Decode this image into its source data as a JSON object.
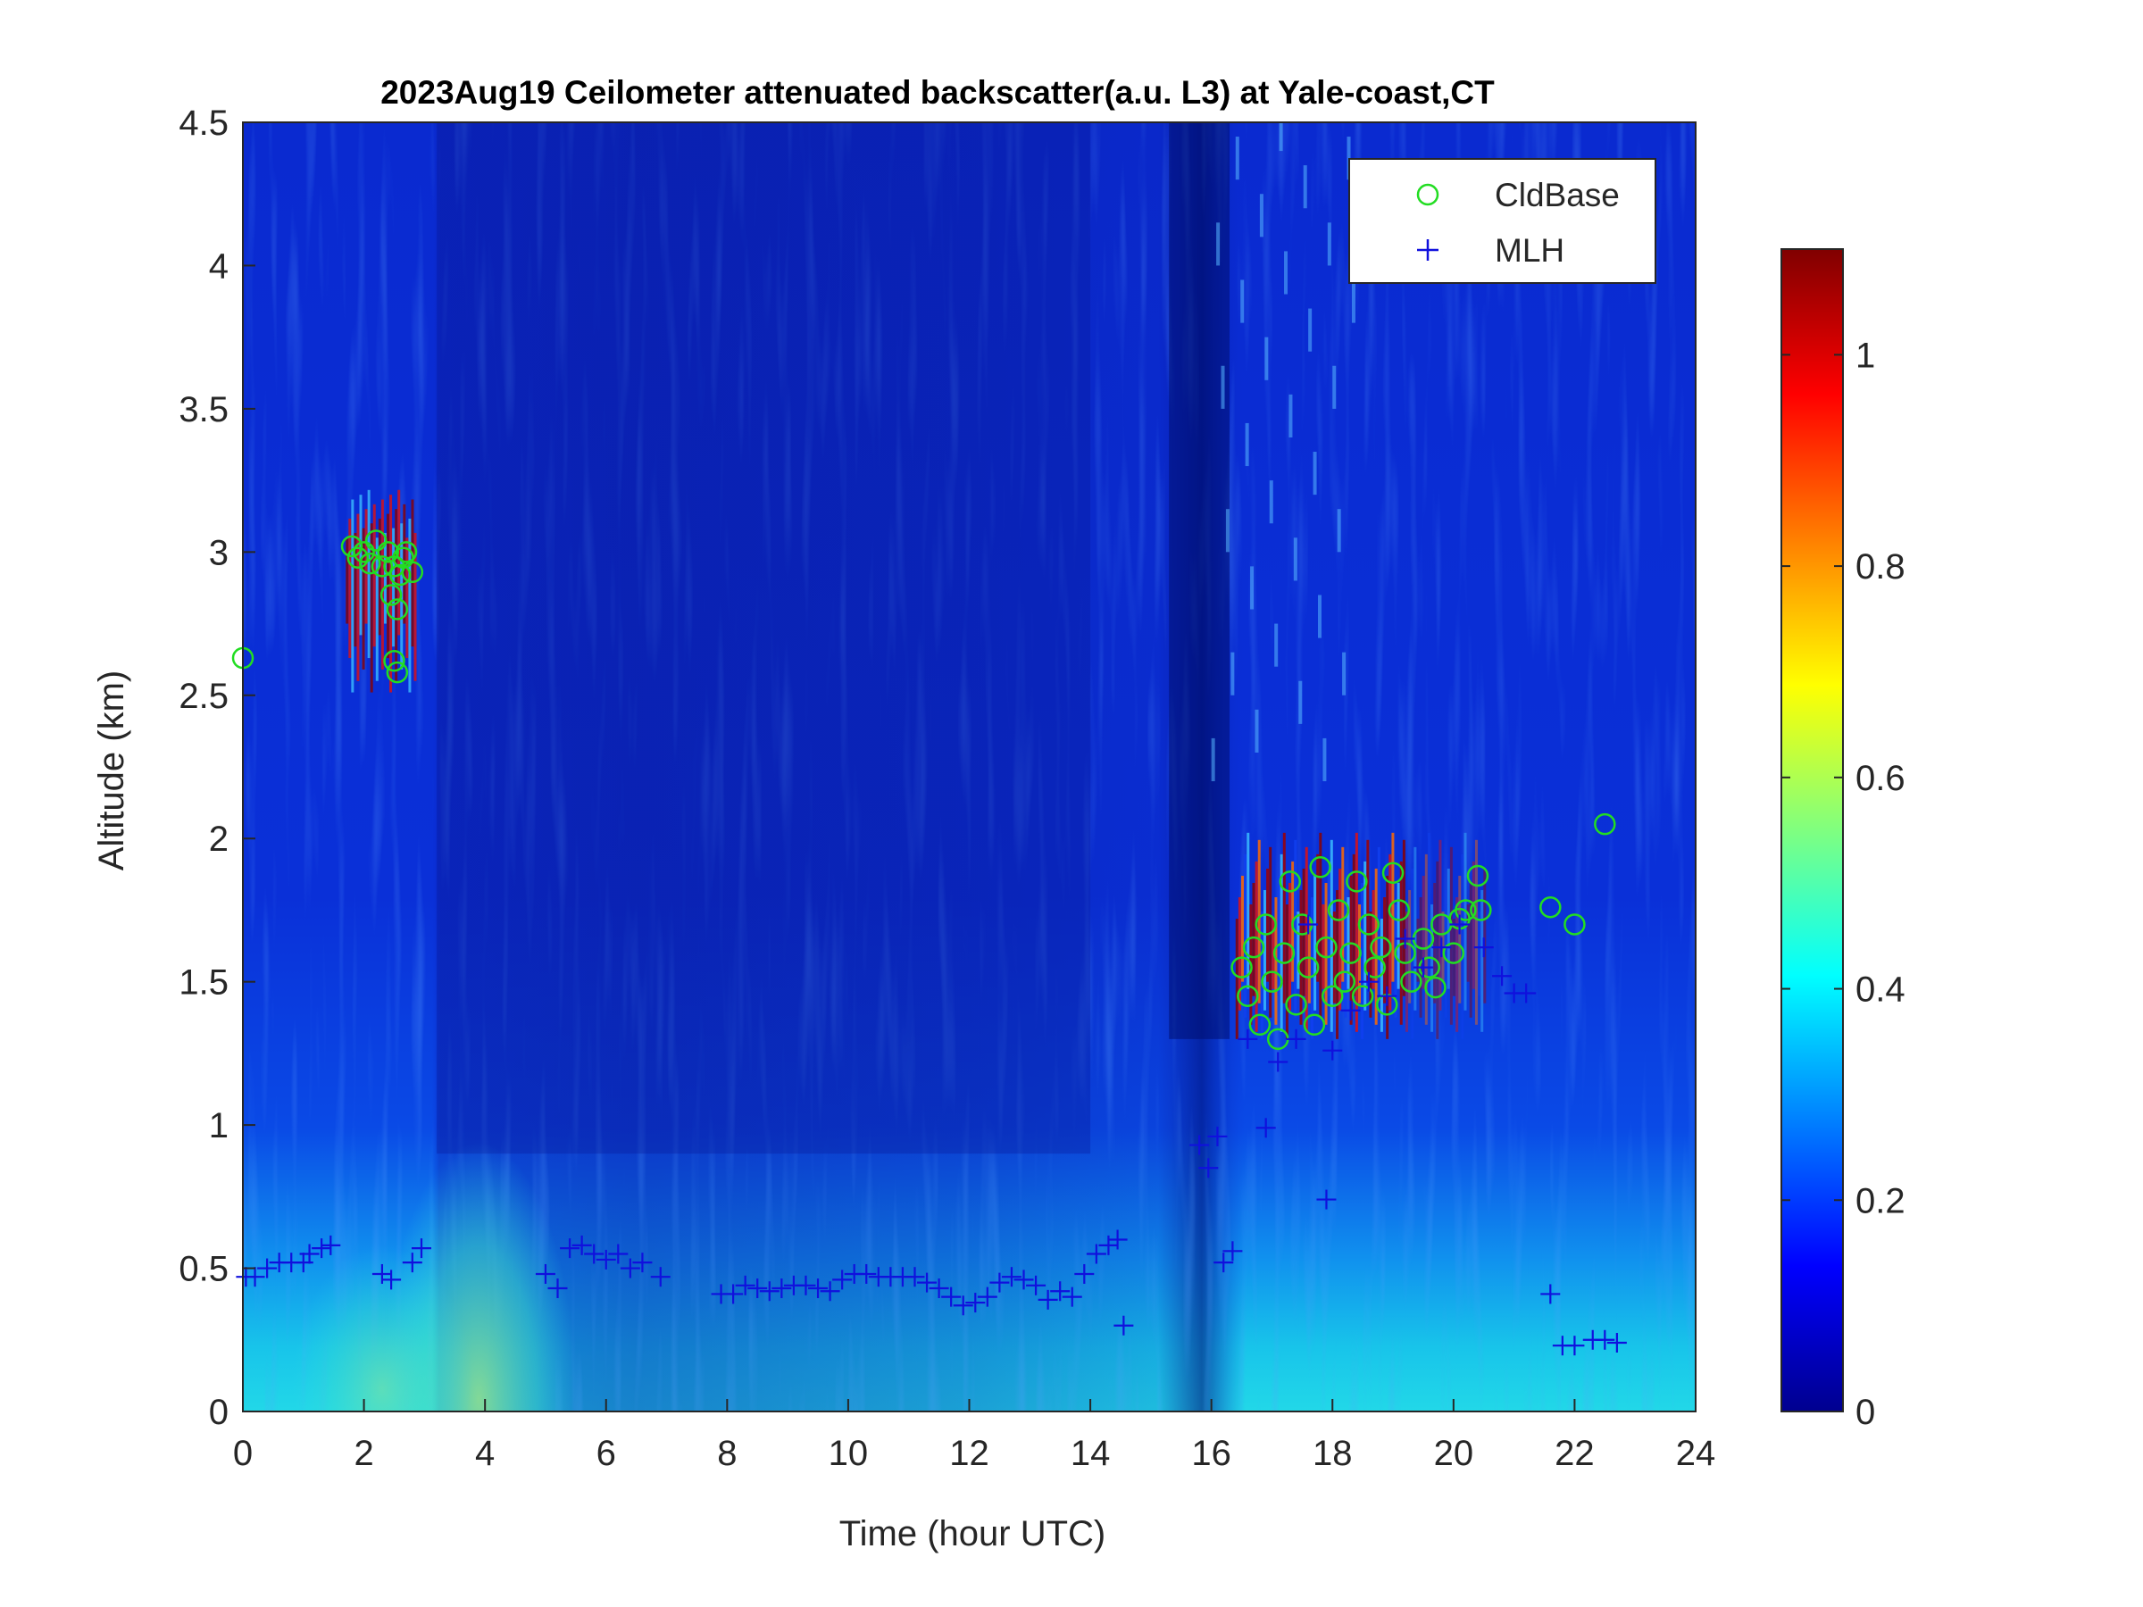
{
  "chart_data": {
    "type": "heatmap",
    "title": "2023Aug19 Ceilometer attenuated backscatter(a.u. L3) at Yale-coast,CT",
    "xlabel": "Time (hour UTC)",
    "ylabel": "Altitude (km)",
    "xlim": [
      0,
      24
    ],
    "ylim": [
      0,
      4.5
    ],
    "xticks": [
      "0",
      "2",
      "4",
      "6",
      "8",
      "10",
      "12",
      "14",
      "16",
      "18",
      "20",
      "22",
      "24"
    ],
    "yticks": [
      "0",
      "0.5",
      "1",
      "1.5",
      "2",
      "2.5",
      "3",
      "3.5",
      "4",
      "4.5"
    ],
    "colorbar": {
      "range": [
        0,
        1.1
      ],
      "ticks": [
        "0",
        "0.2",
        "0.4",
        "0.6",
        "0.8",
        "1"
      ],
      "colormap": "jet"
    },
    "legend": {
      "position": "top-right",
      "entries": [
        {
          "label": "CldBase",
          "marker": "circle",
          "color": "#22dd22"
        },
        {
          "label": "MLH",
          "marker": "plus",
          "color": "#1010dd"
        }
      ]
    },
    "series": [
      {
        "name": "CldBase",
        "marker": "circle",
        "color": "#22dd22",
        "points": [
          [
            0.0,
            2.63
          ],
          [
            1.8,
            3.02
          ],
          [
            1.9,
            2.98
          ],
          [
            2.0,
            3.0
          ],
          [
            2.1,
            2.96
          ],
          [
            2.2,
            3.04
          ],
          [
            2.3,
            2.95
          ],
          [
            2.4,
            3.0
          ],
          [
            2.45,
            2.85
          ],
          [
            2.5,
            2.95
          ],
          [
            2.55,
            2.8
          ],
          [
            2.6,
            2.92
          ],
          [
            2.65,
            2.98
          ],
          [
            2.7,
            3.0
          ],
          [
            2.8,
            2.93
          ],
          [
            2.5,
            2.62
          ],
          [
            2.55,
            2.58
          ],
          [
            16.5,
            1.55
          ],
          [
            16.6,
            1.45
          ],
          [
            16.7,
            1.62
          ],
          [
            16.8,
            1.35
          ],
          [
            16.9,
            1.7
          ],
          [
            17.0,
            1.5
          ],
          [
            17.1,
            1.3
          ],
          [
            17.2,
            1.6
          ],
          [
            17.3,
            1.85
          ],
          [
            17.4,
            1.42
          ],
          [
            17.5,
            1.7
          ],
          [
            17.6,
            1.55
          ],
          [
            17.7,
            1.35
          ],
          [
            17.8,
            1.9
          ],
          [
            17.9,
            1.62
          ],
          [
            18.0,
            1.45
          ],
          [
            18.1,
            1.75
          ],
          [
            18.2,
            1.5
          ],
          [
            18.3,
            1.6
          ],
          [
            18.4,
            1.85
          ],
          [
            18.5,
            1.45
          ],
          [
            18.6,
            1.7
          ],
          [
            18.7,
            1.55
          ],
          [
            18.8,
            1.62
          ],
          [
            18.9,
            1.42
          ],
          [
            19.0,
            1.88
          ],
          [
            19.1,
            1.75
          ],
          [
            19.2,
            1.6
          ],
          [
            19.3,
            1.5
          ],
          [
            19.5,
            1.65
          ],
          [
            19.6,
            1.55
          ],
          [
            19.7,
            1.48
          ],
          [
            19.8,
            1.7
          ],
          [
            20.0,
            1.6
          ],
          [
            20.1,
            1.72
          ],
          [
            20.2,
            1.75
          ],
          [
            20.4,
            1.87
          ],
          [
            20.45,
            1.75
          ],
          [
            21.6,
            1.76
          ],
          [
            22.0,
            1.7
          ],
          [
            22.5,
            2.05
          ]
        ]
      },
      {
        "name": "MLH",
        "marker": "plus",
        "color": "#1010dd",
        "points": [
          [
            0.05,
            0.47
          ],
          [
            0.2,
            0.47
          ],
          [
            0.4,
            0.5
          ],
          [
            0.6,
            0.52
          ],
          [
            0.8,
            0.52
          ],
          [
            1.0,
            0.52
          ],
          [
            1.1,
            0.55
          ],
          [
            1.3,
            0.57
          ],
          [
            1.45,
            0.58
          ],
          [
            2.3,
            0.48
          ],
          [
            2.45,
            0.46
          ],
          [
            2.8,
            0.52
          ],
          [
            2.95,
            0.57
          ],
          [
            5.0,
            0.48
          ],
          [
            5.2,
            0.43
          ],
          [
            5.4,
            0.57
          ],
          [
            5.6,
            0.58
          ],
          [
            5.8,
            0.55
          ],
          [
            6.0,
            0.53
          ],
          [
            6.2,
            0.55
          ],
          [
            6.4,
            0.5
          ],
          [
            6.6,
            0.52
          ],
          [
            6.9,
            0.47
          ],
          [
            7.9,
            0.41
          ],
          [
            8.1,
            0.41
          ],
          [
            8.3,
            0.44
          ],
          [
            8.5,
            0.43
          ],
          [
            8.7,
            0.42
          ],
          [
            8.9,
            0.43
          ],
          [
            9.1,
            0.44
          ],
          [
            9.3,
            0.44
          ],
          [
            9.5,
            0.43
          ],
          [
            9.7,
            0.42
          ],
          [
            9.9,
            0.46
          ],
          [
            10.1,
            0.48
          ],
          [
            10.3,
            0.48
          ],
          [
            10.5,
            0.47
          ],
          [
            10.7,
            0.47
          ],
          [
            10.9,
            0.47
          ],
          [
            11.1,
            0.47
          ],
          [
            11.3,
            0.45
          ],
          [
            11.5,
            0.43
          ],
          [
            11.7,
            0.4
          ],
          [
            11.9,
            0.37
          ],
          [
            12.1,
            0.38
          ],
          [
            12.3,
            0.4
          ],
          [
            12.5,
            0.45
          ],
          [
            12.7,
            0.47
          ],
          [
            12.9,
            0.46
          ],
          [
            13.1,
            0.44
          ],
          [
            13.3,
            0.39
          ],
          [
            13.5,
            0.42
          ],
          [
            13.7,
            0.4
          ],
          [
            13.9,
            0.48
          ],
          [
            14.1,
            0.55
          ],
          [
            14.3,
            0.58
          ],
          [
            14.45,
            0.6
          ],
          [
            14.55,
            0.3
          ],
          [
            15.8,
            0.93
          ],
          [
            15.95,
            0.85
          ],
          [
            16.1,
            0.96
          ],
          [
            16.2,
            0.52
          ],
          [
            16.35,
            0.56
          ],
          [
            16.6,
            1.3
          ],
          [
            16.9,
            0.99
          ],
          [
            17.1,
            1.22
          ],
          [
            17.4,
            1.3
          ],
          [
            17.6,
            1.7
          ],
          [
            17.9,
            0.74
          ],
          [
            18.0,
            1.26
          ],
          [
            18.3,
            1.4
          ],
          [
            18.6,
            1.5
          ],
          [
            18.9,
            1.45
          ],
          [
            19.2,
            1.65
          ],
          [
            19.5,
            1.55
          ],
          [
            19.8,
            1.62
          ],
          [
            20.1,
            1.7
          ],
          [
            20.5,
            1.62
          ],
          [
            20.8,
            1.52
          ],
          [
            21.0,
            1.46
          ],
          [
            21.2,
            1.46
          ],
          [
            21.6,
            0.41
          ],
          [
            21.8,
            0.23
          ],
          [
            22.0,
            0.23
          ],
          [
            22.3,
            0.25
          ],
          [
            22.5,
            0.25
          ],
          [
            22.7,
            0.24
          ]
        ]
      }
    ]
  }
}
